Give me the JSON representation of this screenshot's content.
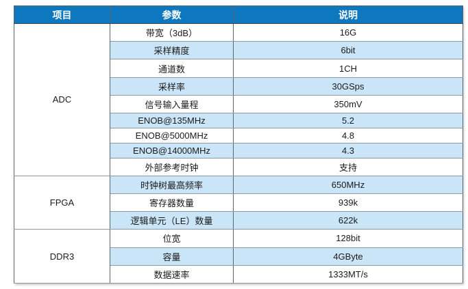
{
  "table": {
    "headers": [
      "项目",
      "参数",
      "说明"
    ],
    "groups": [
      {
        "name": "ADC",
        "rows": [
          {
            "param": "带宽（3dB）",
            "value": "16G"
          },
          {
            "param": "采样精度",
            "value": "6bit"
          },
          {
            "param": "通道数",
            "value": "1CH"
          },
          {
            "param": "采样率",
            "value": "30GSps"
          },
          {
            "param": "信号输入量程",
            "value": "350mV"
          },
          {
            "param": "ENOB@135MHz",
            "value": "5.2"
          },
          {
            "param": "ENOB@5000MHz",
            "value": "4.8"
          },
          {
            "param": "ENOB@14000MHz",
            "value": "4.3"
          },
          {
            "param": "外部参考时钟",
            "value": "支持"
          }
        ]
      },
      {
        "name": "FPGA",
        "rows": [
          {
            "param": "时钟树最高频率",
            "value": "650MHz"
          },
          {
            "param": "寄存器数量",
            "value": "939k"
          },
          {
            "param": "逻辑单元（LE）数量",
            "value": "622k"
          }
        ]
      },
      {
        "name": "DDR3",
        "rows": [
          {
            "param": "位宽",
            "value": "128bit"
          },
          {
            "param": "容量",
            "value": "4GByte"
          },
          {
            "param": "数据速率",
            "value": "1333MT/s"
          }
        ]
      }
    ]
  },
  "colors": {
    "header_bg": "#0E78BE",
    "header_text": "#FFFFFF",
    "stripe_bg": "#CBE5F8",
    "row_bg": "#FFFFFF",
    "border_h": "#8D979D",
    "border_v": "#5A646D",
    "text": "#1A1A1A"
  }
}
